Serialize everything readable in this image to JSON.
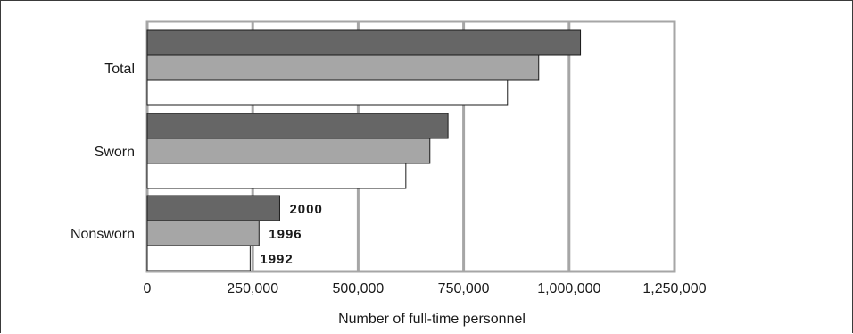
{
  "chart_data": {
    "type": "bar",
    "orientation": "horizontal",
    "categories": [
      "Total",
      "Sworn",
      "Nonsworn"
    ],
    "series": [
      {
        "name": "2000",
        "values": [
          1027000,
          713000,
          314000
        ],
        "color": "#666666"
      },
      {
        "name": "1996",
        "values": [
          928000,
          670000,
          265000
        ],
        "color": "#a6a6a6"
      },
      {
        "name": "1992",
        "values": [
          854000,
          613000,
          244000
        ],
        "color": "#ffffff"
      }
    ],
    "xlabel": "Number of full-time personnel",
    "xlim": [
      0,
      1250000
    ],
    "xticks": [
      0,
      250000,
      500000,
      750000,
      1000000,
      1250000
    ],
    "xtick_labels": [
      "0",
      "250,000",
      "500,000",
      "750,000",
      "1,000,000",
      "1,250,000"
    ],
    "grid": true,
    "legend": "inline-labels-on-last-category",
    "colors": {
      "plot_border": "#a6a6a6",
      "gridline": "#a6a6a6",
      "bar_stroke": "#1a1a1a"
    }
  }
}
